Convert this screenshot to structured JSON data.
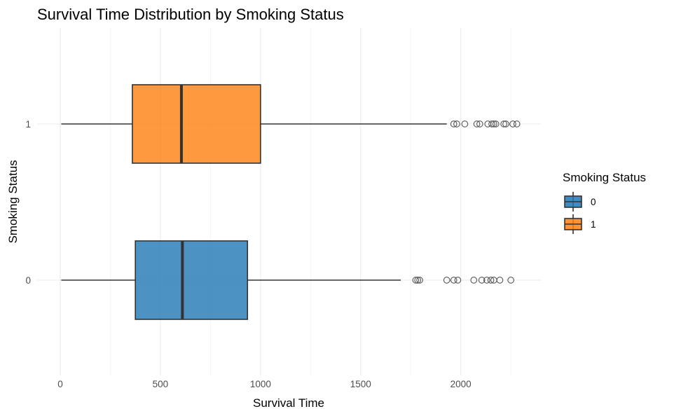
{
  "chart_data": {
    "type": "boxplot",
    "orientation": "horizontal",
    "title": "Survival Time Distribution by Smoking Status",
    "xlabel": "Survival Time",
    "ylabel": "Smoking Status",
    "xlim": [
      -100,
      2400
    ],
    "x_ticks": [
      0,
      500,
      1000,
      1500,
      2000
    ],
    "x_minor": [
      250,
      750,
      1250,
      1750,
      2250
    ],
    "categories": [
      "0",
      "1"
    ],
    "legend": {
      "title": "Smoking Status",
      "position": "right",
      "entries": [
        {
          "label": "0",
          "color": "#1f77b4"
        },
        {
          "label": "1",
          "color": "#ff7f0e"
        }
      ]
    },
    "series": [
      {
        "category": "0",
        "color": "#1f77b4",
        "whisker_low": 5,
        "q1": 375,
        "median": 610,
        "q3": 935,
        "whisker_high": 1700,
        "outliers": [
          1775,
          1785,
          1795,
          1930,
          1965,
          1985,
          2065,
          2105,
          2130,
          2150,
          2165,
          2195,
          2250
        ]
      },
      {
        "category": "1",
        "color": "#ff7f0e",
        "whisker_low": 5,
        "q1": 360,
        "median": 605,
        "q3": 1000,
        "whisker_high": 1930,
        "outliers": [
          1965,
          1980,
          2020,
          2080,
          2095,
          2135,
          2155,
          2165,
          2175,
          2215,
          2225,
          2260,
          2280
        ]
      }
    ]
  }
}
